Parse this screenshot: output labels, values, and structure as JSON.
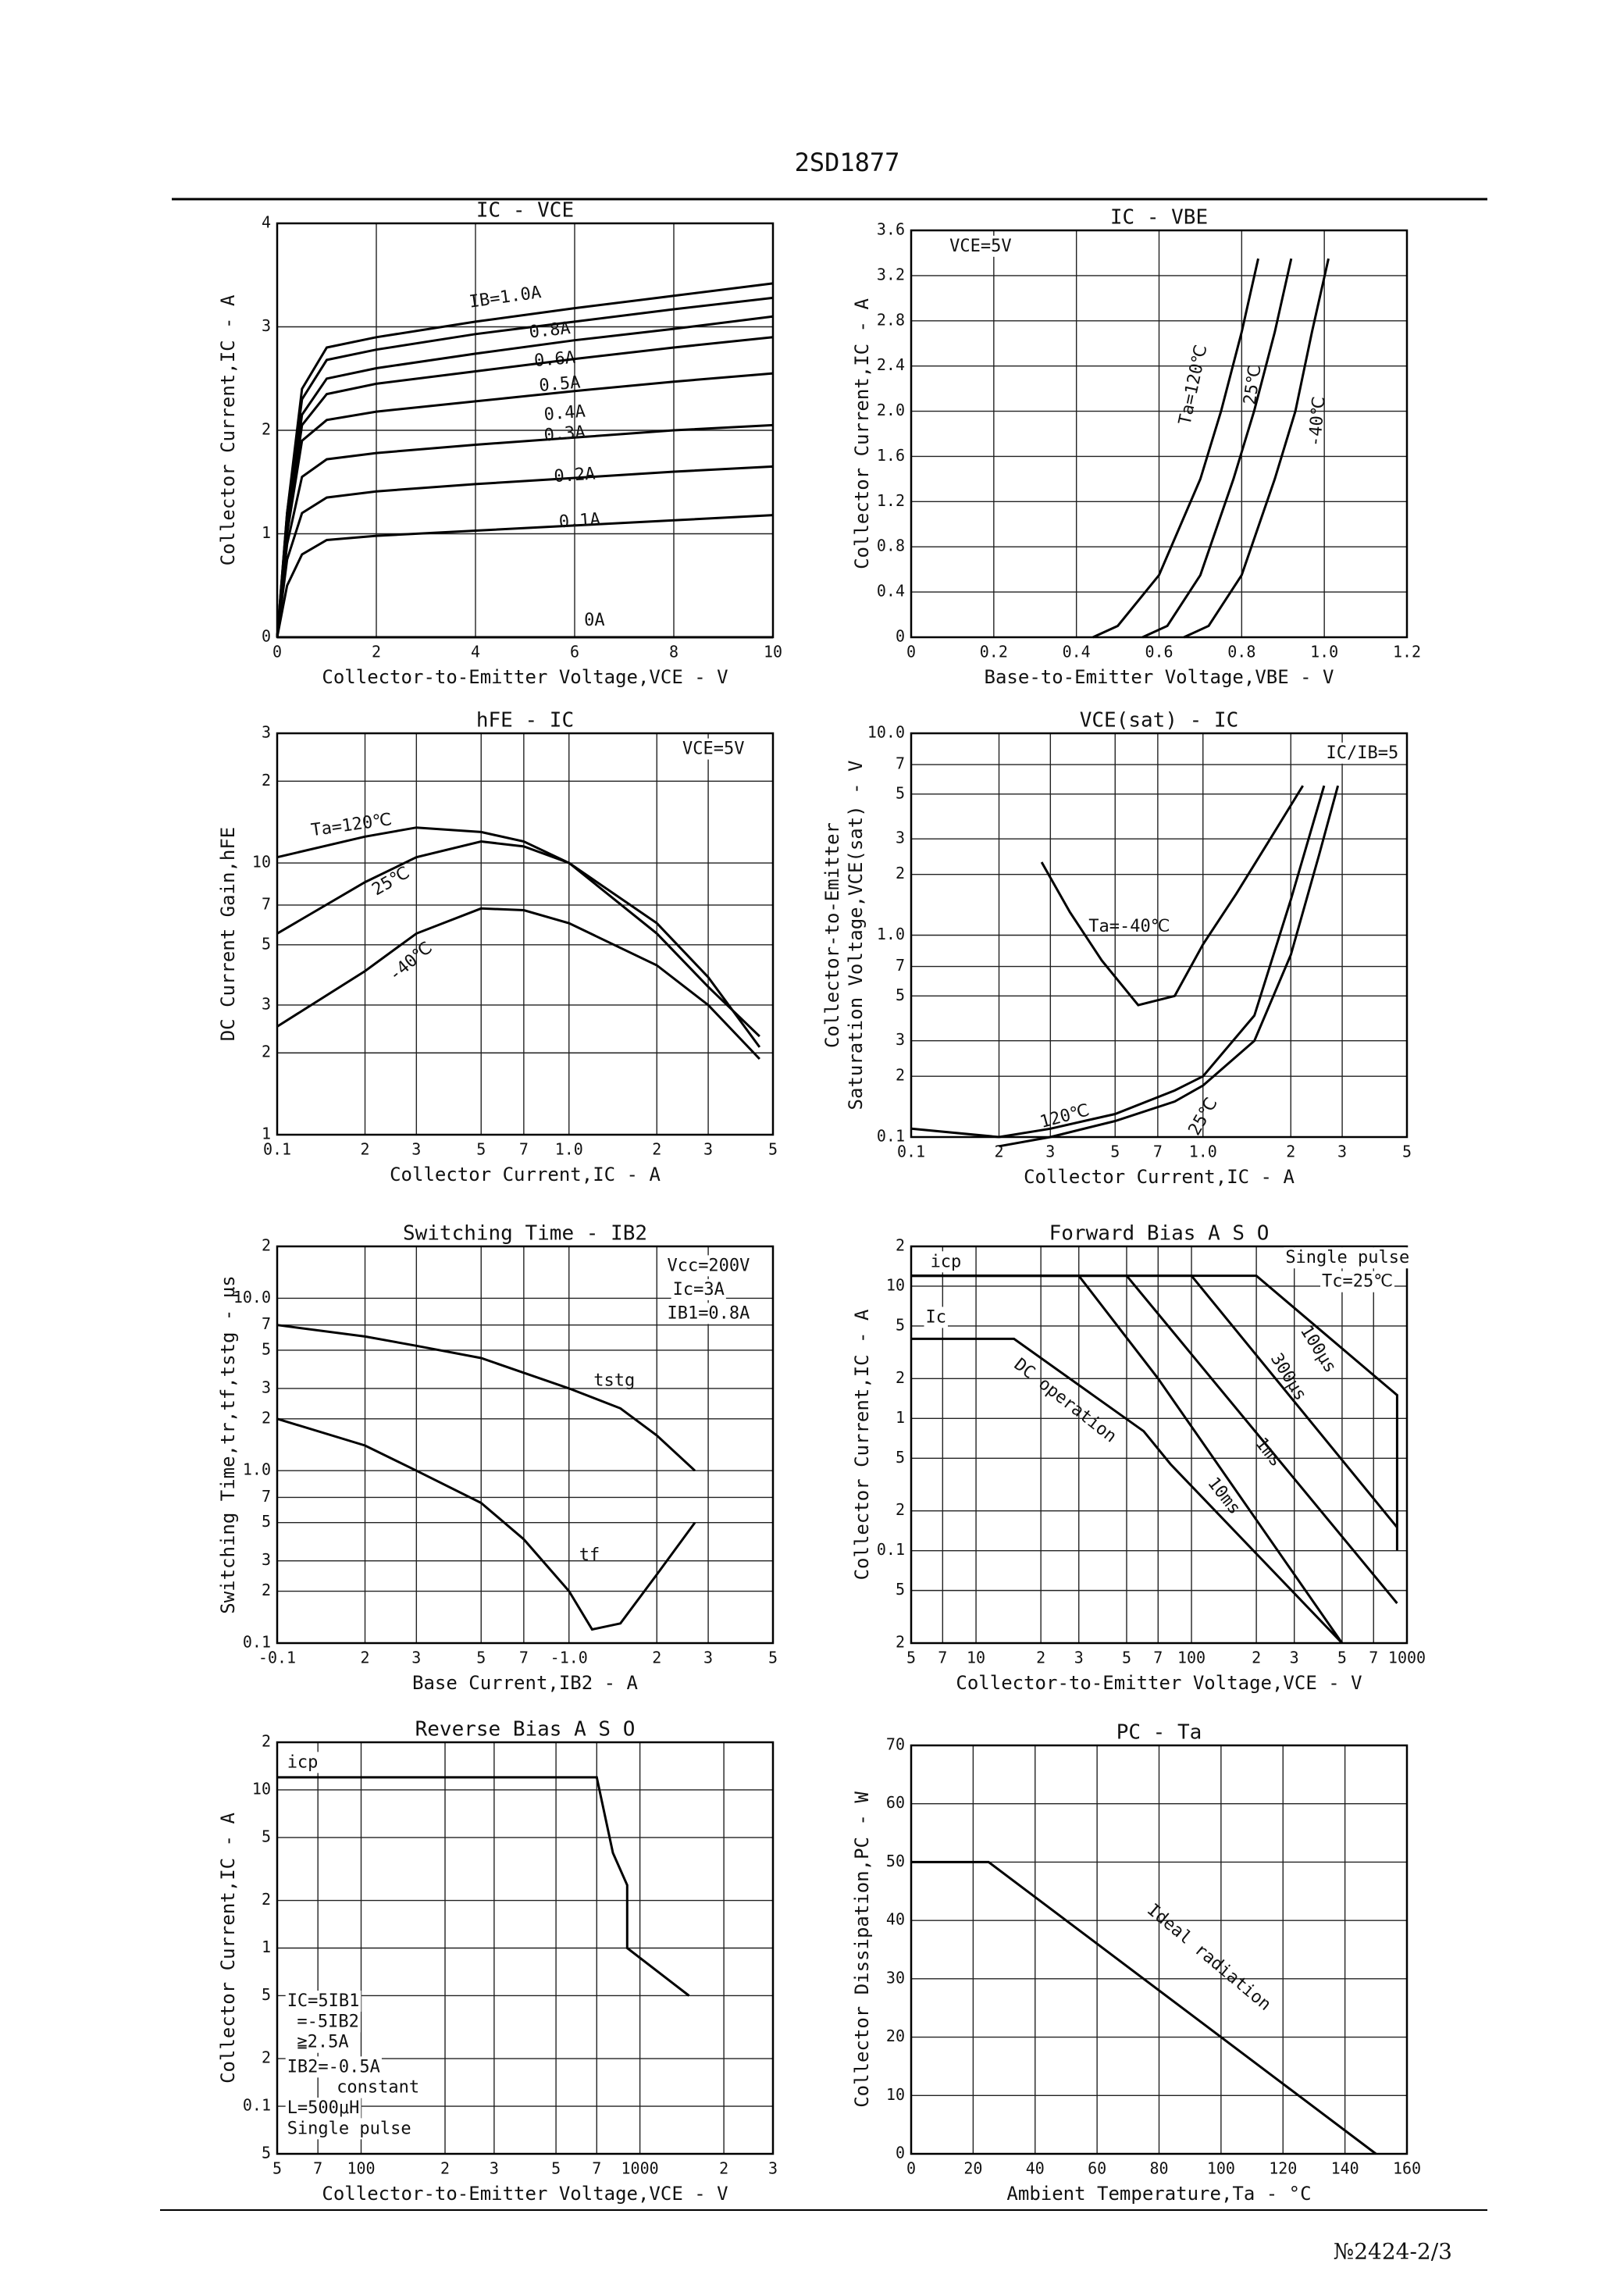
{
  "header": {
    "title": "2SD1877"
  },
  "footer": {
    "text": "№2424-2/3"
  },
  "chart_data": [
    {
      "type": "line",
      "title": "IC - VCE",
      "xlabel": "Collector-to-Emitter Voltage,VCE - V",
      "ylabel": "Collector Current,IC - A",
      "color": "#000000",
      "grid": true,
      "xlim": [
        0,
        10
      ],
      "ylim": [
        0,
        4
      ],
      "xticks": [
        0,
        2,
        4,
        6,
        8,
        10
      ],
      "yticks": [
        0,
        1,
        2,
        3,
        4
      ],
      "x": [
        0,
        0.2,
        0.5,
        1,
        2,
        4,
        6,
        8,
        10
      ],
      "series": [
        {
          "name": "IB=1.0A",
          "values": [
            0,
            1.2,
            2.4,
            2.8,
            2.9,
            3.05,
            3.18,
            3.3,
            3.42
          ]
        },
        {
          "name": "0.8A",
          "values": [
            0,
            1.2,
            2.3,
            2.68,
            2.78,
            2.93,
            3.05,
            3.17,
            3.28
          ]
        },
        {
          "name": "0.6A",
          "values": [
            0,
            1.1,
            2.15,
            2.5,
            2.6,
            2.74,
            2.87,
            2.98,
            3.1
          ]
        },
        {
          "name": "0.5A",
          "values": [
            0,
            1.05,
            2.05,
            2.35,
            2.45,
            2.57,
            2.69,
            2.8,
            2.9
          ]
        },
        {
          "name": "0.4A",
          "values": [
            0,
            1.0,
            1.9,
            2.1,
            2.18,
            2.28,
            2.38,
            2.47,
            2.55
          ]
        },
        {
          "name": "0.3A",
          "values": [
            0,
            0.9,
            1.55,
            1.72,
            1.78,
            1.86,
            1.93,
            2.0,
            2.05
          ]
        },
        {
          "name": "0.2A",
          "values": [
            0,
            0.75,
            1.2,
            1.35,
            1.41,
            1.48,
            1.54,
            1.6,
            1.65
          ]
        },
        {
          "name": "0.1A",
          "values": [
            0,
            0.5,
            0.8,
            0.94,
            0.98,
            1.03,
            1.08,
            1.13,
            1.18
          ]
        },
        {
          "name": "0A",
          "values": [
            0,
            0,
            0,
            0,
            0,
            0,
            0,
            0,
            0
          ]
        }
      ]
    },
    {
      "type": "line",
      "title": "IC - VBE",
      "xlabel": "Base-to-Emitter Voltage,VBE - V",
      "ylabel": "Collector Current,IC - A",
      "color": "#000000",
      "grid": true,
      "xlim": [
        0,
        1.2
      ],
      "ylim": [
        0,
        3.6
      ],
      "xticks": [
        0,
        0.2,
        0.4,
        0.6,
        0.8,
        {
          "value": 1,
          "label": "1.0"
        },
        1.2
      ],
      "yticks": [
        0,
        0.4,
        0.8,
        1.2,
        1.6,
        {
          "value": 2,
          "label": "2.0"
        },
        2.4,
        2.8,
        3.2,
        3.6
      ],
      "annotations": [
        "VCE=5V"
      ],
      "series": [
        {
          "name": "Ta=120℃",
          "x": [
            0.44,
            0.5,
            0.6,
            0.7,
            0.75,
            0.8,
            0.84
          ],
          "values": [
            0,
            0.1,
            0.55,
            1.4,
            2.0,
            2.7,
            3.35
          ]
        },
        {
          "name": "25℃",
          "x": [
            0.56,
            0.62,
            0.7,
            0.78,
            0.83,
            0.88,
            0.92
          ],
          "values": [
            0,
            0.1,
            0.55,
            1.4,
            2.0,
            2.7,
            3.35
          ]
        },
        {
          "name": "-40℃",
          "x": [
            0.66,
            0.72,
            0.8,
            0.88,
            0.93,
            0.97,
            1.01
          ],
          "values": [
            0,
            0.1,
            0.55,
            1.4,
            2.0,
            2.7,
            3.35
          ]
        }
      ]
    },
    {
      "type": "line",
      "title": "hFE - IC",
      "xlabel": "Collector Current,IC - A",
      "ylabel": "DC Current Gain,hFE",
      "color": "#000000",
      "grid": true,
      "xscale": "log",
      "yscale": "log",
      "xlim": [
        0.1,
        5
      ],
      "ylim": [
        1,
        30
      ],
      "xticks": [
        0.1,
        {
          "value": 0.2,
          "label": "2"
        },
        {
          "value": 0.3,
          "label": "3"
        },
        {
          "value": 0.5,
          "label": "5"
        },
        {
          "value": 0.7,
          "label": "7"
        },
        {
          "value": 1,
          "label": "1.0"
        },
        2,
        3,
        5
      ],
      "yticks": [
        1,
        2,
        3,
        5,
        7,
        10,
        {
          "value": 20,
          "label": "2"
        },
        {
          "value": 30,
          "label": "3"
        }
      ],
      "annotations": [
        "VCE=5V"
      ],
      "x": [
        0.1,
        0.2,
        0.3,
        0.5,
        0.7,
        1,
        2,
        3,
        4.5
      ],
      "series": [
        {
          "name": "Ta=120℃",
          "values": [
            10.5,
            12.5,
            13.5,
            13,
            12,
            10,
            5.5,
            3.5,
            2.3
          ]
        },
        {
          "name": "25℃",
          "values": [
            5.5,
            8.5,
            10.5,
            12,
            11.5,
            10,
            6,
            3.8,
            2.1
          ]
        },
        {
          "name": "-40℃",
          "values": [
            2.5,
            4,
            5.5,
            6.8,
            6.7,
            6,
            4.2,
            3,
            1.9
          ]
        }
      ]
    },
    {
      "type": "line",
      "title": "VCE(sat) - IC",
      "xlabel": "Collector Current,IC - A",
      "ylabel": [
        "Collector-to-Emitter",
        "Saturation Voltage,VCE(sat) - V"
      ],
      "color": "#000000",
      "grid": true,
      "xscale": "log",
      "yscale": "log",
      "xlim": [
        0.1,
        5
      ],
      "ylim": [
        0.1,
        10
      ],
      "xticks": [
        0.1,
        {
          "value": 0.2,
          "label": "2"
        },
        {
          "value": 0.3,
          "label": "3"
        },
        {
          "value": 0.5,
          "label": "5"
        },
        {
          "value": 0.7,
          "label": "7"
        },
        {
          "value": 1,
          "label": "1.0"
        },
        2,
        3,
        5
      ],
      "yticks": [
        0.1,
        {
          "value": 0.2,
          "label": "2"
        },
        {
          "value": 0.3,
          "label": "3"
        },
        {
          "value": 0.5,
          "label": "5"
        },
        {
          "value": 0.7,
          "label": "7"
        },
        {
          "value": 1,
          "label": "1.0"
        },
        2,
        3,
        5,
        7,
        {
          "value": 10,
          "label": "10.0"
        }
      ],
      "annotations": [
        "IC/IB=5"
      ],
      "series": [
        {
          "name": "Ta=-40℃",
          "x": [
            0.28,
            0.35,
            0.45,
            0.6,
            0.8,
            1.0,
            1.3,
            1.7,
            2.2
          ],
          "values": [
            2.3,
            1.3,
            0.75,
            0.45,
            0.5,
            0.9,
            1.6,
            3,
            5.5
          ]
        },
        {
          "name": "120℃",
          "x": [
            0.1,
            0.2,
            0.3,
            0.5,
            0.8,
            1.0,
            1.5,
            2.0,
            2.6
          ],
          "values": [
            0.11,
            0.1,
            0.11,
            0.13,
            0.17,
            0.2,
            0.4,
            1.5,
            5.5
          ]
        },
        {
          "name": "25℃",
          "x": [
            0.2,
            0.3,
            0.5,
            0.8,
            1.0,
            1.5,
            2.0,
            2.5,
            2.9
          ],
          "values": [
            0.09,
            0.1,
            0.12,
            0.15,
            0.18,
            0.3,
            0.8,
            2.5,
            5.5
          ]
        }
      ]
    },
    {
      "type": "line",
      "title": "Switching Time - IB2",
      "xlabel": "Base Current,IB2 - A",
      "ylabel": "Switching Time,tr,tf,tstg - μs",
      "color": "#000000",
      "grid": true,
      "xscale": "log",
      "yscale": "log",
      "xlim": [
        0.1,
        5
      ],
      "ylim": [
        0.1,
        20
      ],
      "xticks": [
        {
          "value": 0.1,
          "label": "-0.1"
        },
        {
          "value": 0.2,
          "label": "2"
        },
        {
          "value": 0.3,
          "label": "3"
        },
        {
          "value": 0.5,
          "label": "5"
        },
        {
          "value": 0.7,
          "label": "7"
        },
        {
          "value": 1,
          "label": "-1.0"
        },
        2,
        3,
        5
      ],
      "yticks": [
        0.1,
        {
          "value": 0.2,
          "label": "2"
        },
        {
          "value": 0.3,
          "label": "3"
        },
        {
          "value": 0.5,
          "label": "5"
        },
        {
          "value": 0.7,
          "label": "7"
        },
        {
          "value": 1,
          "label": "1.0"
        },
        2,
        3,
        5,
        7,
        {
          "value": 10,
          "label": "10.0"
        },
        {
          "value": 20,
          "label": "2"
        }
      ],
      "annotations": [
        "Vcc=200V",
        "Ic=3A",
        "IB1=0.8A"
      ],
      "series": [
        {
          "name": "tstg",
          "x": [
            0.1,
            0.2,
            0.3,
            0.5,
            1,
            1.5,
            2,
            2.7
          ],
          "values": [
            7,
            6,
            5.3,
            4.5,
            3,
            2.3,
            1.6,
            1.0
          ]
        },
        {
          "name": "tf",
          "x": [
            0.1,
            0.2,
            0.3,
            0.5,
            0.7,
            1.0,
            1.2,
            1.5,
            2,
            2.7
          ],
          "values": [
            2,
            1.4,
            1.0,
            0.65,
            0.4,
            0.2,
            0.12,
            0.13,
            0.25,
            0.5
          ]
        }
      ]
    },
    {
      "type": "line",
      "title": "Forward Bias A S O",
      "xlabel": "Collector-to-Emitter Voltage,VCE - V",
      "ylabel": "Collector Current,IC - A",
      "color": "#000000",
      "grid": true,
      "xscale": "log",
      "yscale": "log",
      "xlim": [
        5,
        1000
      ],
      "ylim": [
        0.02,
        20
      ],
      "xticks": [
        5,
        7,
        10,
        {
          "value": 20,
          "label": "2"
        },
        {
          "value": 30,
          "label": "3"
        },
        {
          "value": 50,
          "label": "5"
        },
        {
          "value": 70,
          "label": "7"
        },
        100,
        {
          "value": 200,
          "label": "2"
        },
        {
          "value": 300,
          "label": "3"
        },
        {
          "value": 500,
          "label": "5"
        },
        {
          "value": 700,
          "label": "7"
        },
        1000
      ],
      "yticks": [
        {
          "value": 0.02,
          "label": "2"
        },
        {
          "value": 0.05,
          "label": "5"
        },
        0.1,
        {
          "value": 0.2,
          "label": "2"
        },
        {
          "value": 0.5,
          "label": "5"
        },
        1,
        2,
        5,
        10,
        {
          "value": 20,
          "label": "2"
        }
      ],
      "annotations": [
        "icp",
        "Ic",
        "Single pulse",
        "Tc=25℃"
      ],
      "series": [
        {
          "name": "DC operation",
          "x": [
            5,
            15,
            60,
            80,
            500
          ],
          "values": [
            4,
            4,
            0.8,
            0.45,
            0.02
          ]
        },
        {
          "name": "10ms",
          "x": [
            5,
            30,
            70,
            500
          ],
          "values": [
            12,
            12,
            2,
            0.02
          ]
        },
        {
          "name": "1ms",
          "x": [
            5,
            50,
            900
          ],
          "values": [
            12,
            12,
            0.04
          ]
        },
        {
          "name": "300μs",
          "x": [
            5,
            100,
            900
          ],
          "values": [
            12,
            12,
            0.15
          ]
        },
        {
          "name": "100μs",
          "x": [
            5,
            200,
            900,
            900
          ],
          "values": [
            12,
            12,
            1.5,
            0.1
          ]
        }
      ]
    },
    {
      "type": "line",
      "title": "Reverse Bias A S O",
      "xlabel": "Collector-to-Emitter Voltage,VCE - V",
      "ylabel": "Collector Current,IC - A",
      "color": "#000000",
      "grid": true,
      "xscale": "log",
      "yscale": "log",
      "xlim": [
        50,
        3000
      ],
      "ylim": [
        0.05,
        20
      ],
      "xticks": [
        {
          "value": 50,
          "label": "5"
        },
        {
          "value": 70,
          "label": "7"
        },
        100,
        {
          "value": 200,
          "label": "2"
        },
        {
          "value": 300,
          "label": "3"
        },
        {
          "value": 500,
          "label": "5"
        },
        {
          "value": 700,
          "label": "7"
        },
        1000,
        {
          "value": 2000,
          "label": "2"
        },
        {
          "value": 3000,
          "label": "3"
        }
      ],
      "yticks": [
        {
          "value": 0.05,
          "label": "5"
        },
        0.1,
        {
          "value": 0.2,
          "label": "2"
        },
        {
          "value": 0.5,
          "label": "5"
        },
        1,
        2,
        5,
        10,
        {
          "value": 20,
          "label": "2"
        }
      ],
      "annotations": [
        "icp",
        "IC=5IB1",
        "=-5IB2",
        "≧2.5A",
        "IB2=-0.5A",
        "constant",
        "L=500μH",
        "Single pulse"
      ],
      "series": [
        {
          "x": [
            50,
            700,
            800,
            900,
            900,
            1500
          ],
          "values": [
            12,
            12,
            4,
            2.5,
            1.0,
            0.5
          ]
        }
      ]
    },
    {
      "type": "line",
      "title": "PC - Ta",
      "xlabel": "Ambient Temperature,Ta - °C",
      "ylabel": "Collector Dissipation,PC - W",
      "color": "#000000",
      "grid": true,
      "xlim": [
        0,
        160
      ],
      "ylim": [
        0,
        70
      ],
      "xticks": [
        0,
        20,
        40,
        60,
        80,
        100,
        120,
        140,
        160
      ],
      "yticks": [
        0,
        10,
        20,
        30,
        40,
        50,
        60,
        70
      ],
      "series": [
        {
          "name": "Ideal radiation",
          "x": [
            0,
            25,
            150
          ],
          "values": [
            50,
            50,
            0
          ]
        }
      ]
    }
  ]
}
